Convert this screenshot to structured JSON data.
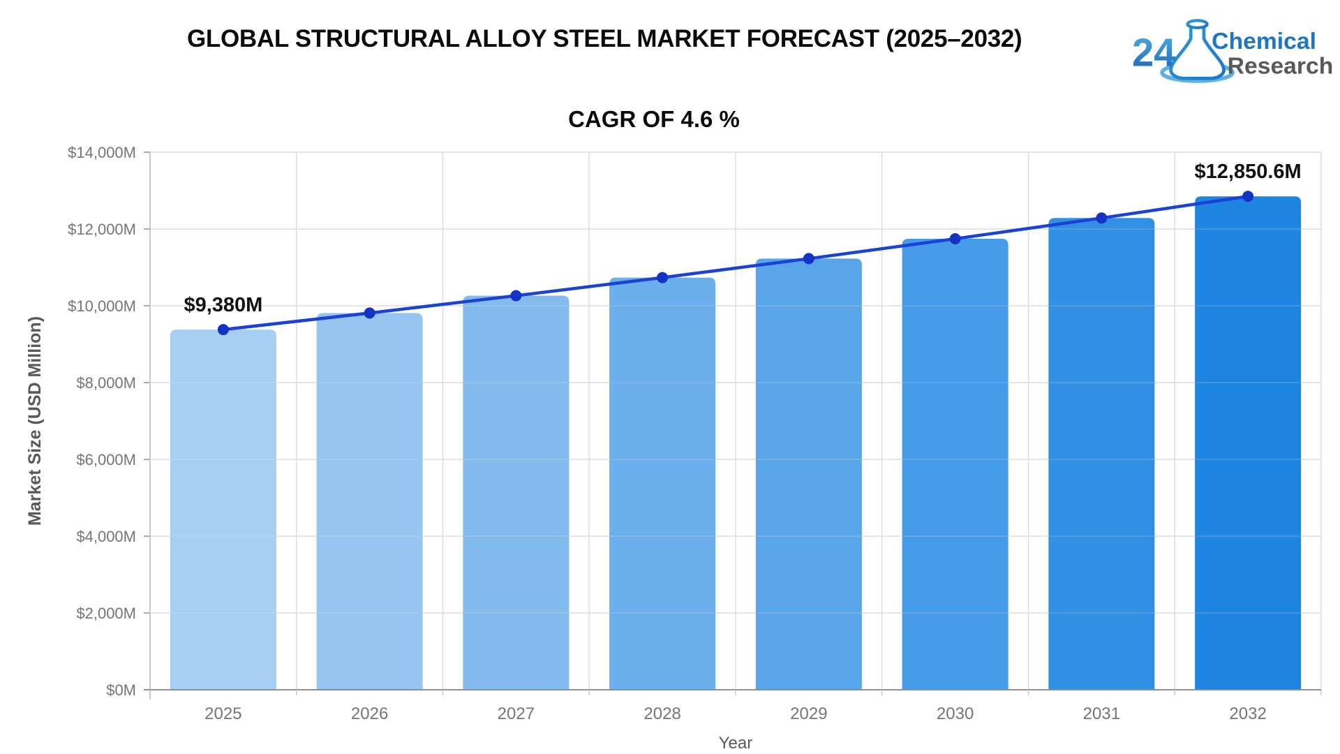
{
  "header": {
    "title": "GLOBAL STRUCTURAL ALLOY STEEL MARKET FORECAST (2025–2032)"
  },
  "logo": {
    "number": "24",
    "word_top": "Chemical",
    "word_bottom": "Research",
    "blue": "#1B75C8",
    "gray": "#58595B"
  },
  "chart_data": {
    "type": "bar",
    "title": "CAGR OF 4.6 %",
    "xlabel": "Year",
    "ylabel": "Market Size (USD Million)",
    "categories": [
      "2025",
      "2026",
      "2027",
      "2028",
      "2029",
      "2030",
      "2031",
      "2032"
    ],
    "series": [
      {
        "name": "Market Size (USD Million)",
        "type": "bar",
        "values": [
          9380,
          9811.5,
          10262.8,
          10734.9,
          11228.7,
          11745.2,
          12285.5,
          12850.6
        ],
        "colors": [
          "#A7CEF3",
          "#96C5F1",
          "#84BBEE",
          "#6BAFEC",
          "#58A5EA",
          "#459BE8",
          "#3190E4",
          "#1E86E0"
        ]
      },
      {
        "name": "Trend",
        "type": "line",
        "values": [
          9380,
          9811.5,
          10262.8,
          10734.9,
          11228.7,
          11745.2,
          12285.5,
          12850.6
        ],
        "color": "#1B41D6",
        "marker_color": "#1233C4"
      }
    ],
    "ylim": [
      0,
      14000
    ],
    "ytick_step": 2000,
    "ytick_labels": [
      "$0M",
      "$2,000M",
      "$4,000M",
      "$6,000M",
      "$8,000M",
      "$10,000M",
      "$12,000M",
      "$14,000M"
    ],
    "annotations": [
      {
        "category": "2025",
        "text": "$9,380M"
      },
      {
        "category": "2032",
        "text": "$12,850.6M"
      }
    ],
    "grid": true,
    "legend": "none"
  },
  "colors": {
    "grid": "#DEDEDE",
    "axis": "#C9C9C9",
    "baseline": "#8F8F8F",
    "tick_text": "#757575",
    "axis_title": "#595959",
    "annotation": "#111111"
  }
}
